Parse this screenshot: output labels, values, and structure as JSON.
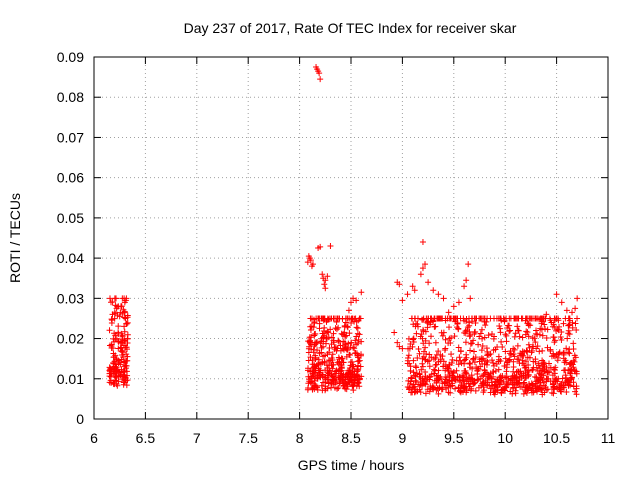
{
  "chart_data": {
    "type": "scatter",
    "title": "Day 237 of 2017, Rate Of TEC Index for receiver skar",
    "xlabel": "GPS time / hours",
    "ylabel": "ROTI / TECUs",
    "xlim": [
      6,
      11
    ],
    "ylim": [
      0,
      0.09
    ],
    "xticks": [
      "6",
      "6.5",
      "7",
      "7.5",
      "8",
      "8.5",
      "9",
      "9.5",
      "10",
      "10.5",
      "11"
    ],
    "yticks": [
      "0",
      "0.01",
      "0.02",
      "0.03",
      "0.04",
      "0.05",
      "0.06",
      "0.07",
      "0.08",
      "0.09"
    ],
    "grid": true,
    "marker": "plus",
    "color": "#ff0000",
    "clusters": [
      {
        "x_range": [
          6.15,
          6.33
        ],
        "y_range": [
          0.006,
          0.03
        ],
        "count": 170
      },
      {
        "x_range": [
          8.08,
          8.6
        ],
        "y_range": [
          0.005,
          0.025
        ],
        "count": 420
      },
      {
        "x_range": [
          9.05,
          10.7
        ],
        "y_range": [
          0.004,
          0.025
        ],
        "count": 950
      }
    ],
    "points": [
      [
        8.16,
        0.0875
      ],
      [
        8.17,
        0.087
      ],
      [
        8.18,
        0.0865
      ],
      [
        8.19,
        0.086
      ],
      [
        8.2,
        0.0845
      ],
      [
        8.08,
        0.039
      ],
      [
        8.09,
        0.0405
      ],
      [
        8.1,
        0.04
      ],
      [
        8.11,
        0.0395
      ],
      [
        8.12,
        0.038
      ],
      [
        8.13,
        0.0385
      ],
      [
        8.18,
        0.0425
      ],
      [
        8.2,
        0.0428
      ],
      [
        8.22,
        0.036
      ],
      [
        8.23,
        0.035
      ],
      [
        8.24,
        0.0335
      ],
      [
        8.25,
        0.0345
      ],
      [
        8.27,
        0.0355
      ],
      [
        8.3,
        0.043
      ],
      [
        8.25,
        0.0325
      ],
      [
        8.5,
        0.029
      ],
      [
        8.52,
        0.03
      ],
      [
        8.55,
        0.0295
      ],
      [
        8.6,
        0.0315
      ],
      [
        8.48,
        0.027
      ],
      [
        8.45,
        0.024
      ],
      [
        6.22,
        0.0275
      ],
      [
        6.3,
        0.029
      ],
      [
        6.31,
        0.0295
      ],
      [
        6.18,
        0.026
      ],
      [
        6.25,
        0.0255
      ],
      [
        8.95,
        0.034
      ],
      [
        8.97,
        0.0335
      ],
      [
        9.0,
        0.0295
      ],
      [
        9.05,
        0.031
      ],
      [
        9.1,
        0.033
      ],
      [
        9.12,
        0.032
      ],
      [
        9.18,
        0.036
      ],
      [
        9.2,
        0.0375
      ],
      [
        9.22,
        0.0385
      ],
      [
        9.2,
        0.044
      ],
      [
        9.25,
        0.034
      ],
      [
        9.3,
        0.032
      ],
      [
        9.35,
        0.031
      ],
      [
        9.4,
        0.03
      ],
      [
        9.6,
        0.033
      ],
      [
        9.62,
        0.0345
      ],
      [
        9.64,
        0.0385
      ],
      [
        9.66,
        0.03
      ],
      [
        9.45,
        0.0265
      ],
      [
        9.5,
        0.028
      ],
      [
        9.55,
        0.029
      ],
      [
        9.7,
        0.025
      ],
      [
        8.92,
        0.0215
      ],
      [
        8.95,
        0.019
      ],
      [
        8.97,
        0.018
      ],
      [
        9.0,
        0.0175
      ],
      [
        10.5,
        0.031
      ],
      [
        10.55,
        0.029
      ],
      [
        10.6,
        0.027
      ],
      [
        10.65,
        0.0265
      ],
      [
        10.68,
        0.0275
      ],
      [
        10.7,
        0.03
      ],
      [
        10.4,
        0.026
      ],
      [
        10.45,
        0.024
      ],
      [
        10.35,
        0.025
      ],
      [
        10.3,
        0.022
      ]
    ]
  }
}
